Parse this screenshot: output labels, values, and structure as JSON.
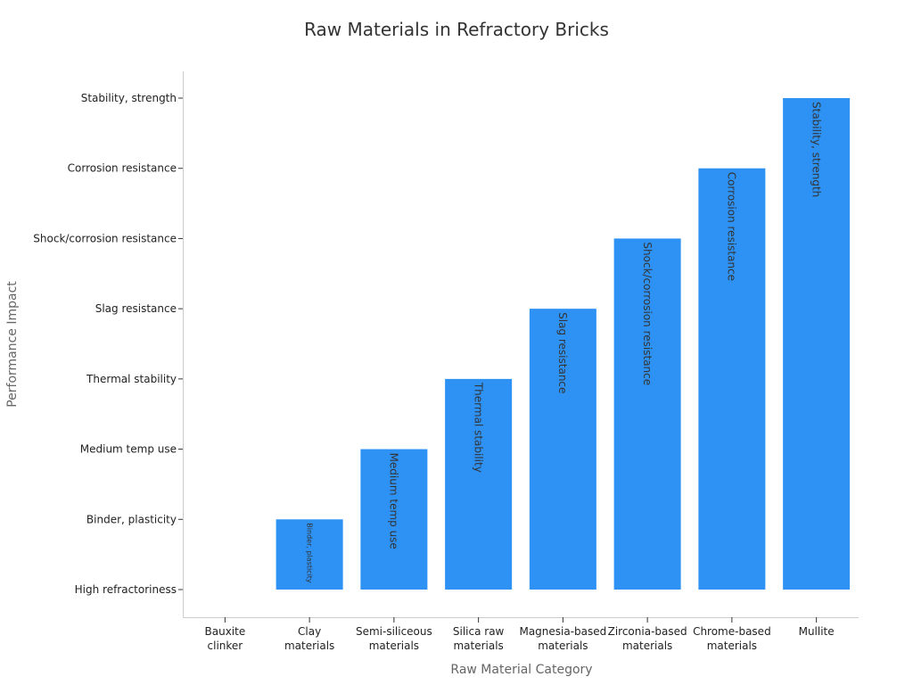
{
  "chart_data": {
    "type": "bar",
    "title": "Raw Materials in Refractory Bricks",
    "xlabel": "Raw Material Category",
    "ylabel": "Performance Impact",
    "categories": [
      [
        "Bauxite",
        "clinker"
      ],
      [
        "Clay",
        "materials"
      ],
      [
        "Semi-siliceous",
        "materials"
      ],
      [
        "Silica raw",
        "materials"
      ],
      [
        "Magnesia-based",
        "materials"
      ],
      [
        "Zirconia-based",
        "materials"
      ],
      [
        "Chrome-based",
        "materials"
      ],
      [
        "Mullite"
      ]
    ],
    "y_categories": [
      "High refractoriness",
      "Binder, plasticity",
      "Medium temp use",
      "Thermal stability",
      "Slag resistance",
      "Shock/corrosion resistance",
      "Corrosion resistance",
      "Stability, strength"
    ],
    "values": [
      0,
      1,
      2,
      3,
      4,
      5,
      6,
      7
    ],
    "bar_labels": [
      "",
      "Binder, plasticity",
      "Medium temp use",
      "Thermal stability",
      "Slag resistance",
      "Shock/corrosion resistance",
      "Corrosion resistance",
      "Stability, strength"
    ],
    "bar_color": "#2e92f5",
    "ylim": [
      0,
      7
    ],
    "grid": false,
    "legend": "none"
  }
}
